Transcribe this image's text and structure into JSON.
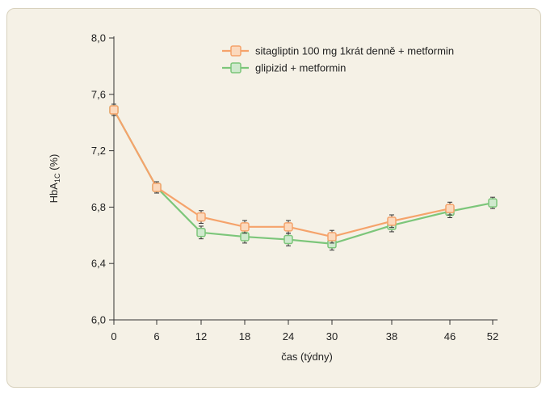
{
  "chart_data": {
    "type": "line",
    "xlabel": "čas (týdny)",
    "ylabel_main": "HbA",
    "ylabel_sub": "1C",
    "ylabel_unit": "(%)",
    "x": [
      0,
      6,
      12,
      18,
      24,
      30,
      38,
      46,
      52
    ],
    "x_tick_labels": [
      "0",
      "6",
      "12",
      "18",
      "24",
      "30",
      "38",
      "46",
      "52"
    ],
    "y_ticks": [
      6.0,
      6.4,
      6.8,
      7.2,
      7.6,
      8.0
    ],
    "y_tick_labels": [
      "6,0",
      "6,4",
      "6,8",
      "7,2",
      "7,6",
      "8,0"
    ],
    "ylim": [
      6.0,
      8.0
    ],
    "grid": false,
    "legend_position": "top-right",
    "series": [
      {
        "name": "sitagliptin 100 mg 1krát denně + metformin",
        "color": "#f5a36b",
        "marker_fill": "#fbd9bd",
        "x": [
          0,
          6,
          12,
          18,
          24,
          30,
          38,
          46
        ],
        "values": [
          7.49,
          6.94,
          6.73,
          6.66,
          6.66,
          6.59,
          6.7,
          6.79
        ],
        "err": [
          0.04,
          0.04,
          0.045,
          0.045,
          0.045,
          0.045,
          0.045,
          0.045
        ]
      },
      {
        "name": "glipizid + metformin",
        "color": "#7cc67a",
        "marker_fill": "#cfe9cd",
        "x": [
          0,
          6,
          12,
          18,
          24,
          30,
          38,
          46,
          52
        ],
        "values": [
          7.49,
          6.94,
          6.62,
          6.59,
          6.57,
          6.54,
          6.67,
          6.77,
          6.83
        ],
        "err": [
          0.04,
          0.04,
          0.045,
          0.045,
          0.045,
          0.045,
          0.045,
          0.045,
          0.04
        ]
      }
    ]
  }
}
